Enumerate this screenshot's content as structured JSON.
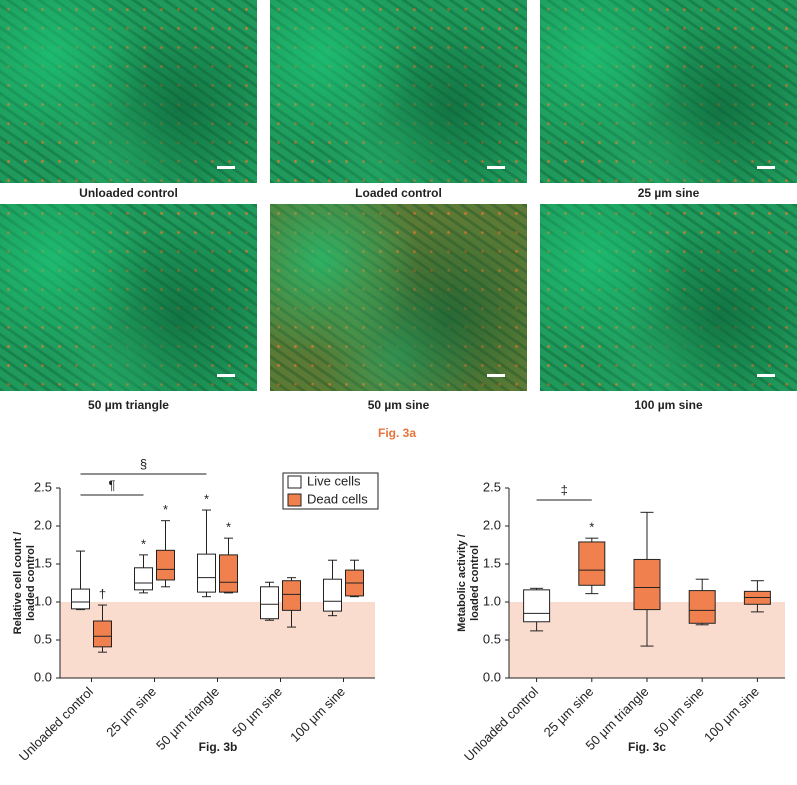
{
  "panel_a": {
    "label": "Fig. 3a",
    "images": [
      {
        "caption": "Unloaded control"
      },
      {
        "caption": "Loaded control"
      },
      {
        "caption": "25 µm sine"
      },
      {
        "caption": "50 µm triangle"
      },
      {
        "caption": "50 µm sine"
      },
      {
        "caption": "100 µm sine"
      }
    ]
  },
  "chart_data": [
    {
      "type": "box",
      "caption": "Fig. 3b",
      "y_label": [
        "Relative cell count /",
        "loaded control"
      ],
      "categories": [
        "Unloaded control",
        "25 µm sine",
        "50 µm triangle",
        "50 µm sine",
        "100 µm sine"
      ],
      "ylim": [
        0,
        2.5
      ],
      "yticks": [
        {
          "value": 0,
          "label": "0.0"
        },
        {
          "value": 0.5,
          "label": "0.5"
        },
        {
          "value": 1,
          "label": "1.0"
        },
        {
          "value": 1.5,
          "label": "1.5"
        },
        {
          "value": 2,
          "label": "2.0"
        },
        {
          "value": 2.5,
          "label": "2.5"
        }
      ],
      "shaded_range": [
        0,
        1
      ],
      "shade_color": "#fadcce",
      "legend": "top-right",
      "brackets": [
        "¶",
        "§"
      ],
      "series": [
        {
          "name": "Live cells",
          "color": "#ffffff",
          "marks": [
            null,
            "*",
            "*",
            null,
            null
          ],
          "values": [
            {
              "min": 0.9,
              "q1": 0.91,
              "median": 1.0,
              "q3": 1.17,
              "max": 1.67
            },
            {
              "min": 1.12,
              "q1": 1.16,
              "median": 1.25,
              "q3": 1.45,
              "max": 1.62
            },
            {
              "min": 1.07,
              "q1": 1.13,
              "median": 1.32,
              "q3": 1.63,
              "max": 2.21
            },
            {
              "min": 0.76,
              "q1": 0.78,
              "median": 0.97,
              "q3": 1.2,
              "max": 1.26
            },
            {
              "min": 0.82,
              "q1": 0.88,
              "median": 1.01,
              "q3": 1.3,
              "max": 1.55
            }
          ]
        },
        {
          "name": "Dead cells",
          "color": "#f0814f",
          "marks": [
            "†",
            "*",
            "*",
            null,
            null
          ],
          "values": [
            {
              "min": 0.34,
              "q1": 0.41,
              "median": 0.55,
              "q3": 0.75,
              "max": 0.96
            },
            {
              "min": 1.2,
              "q1": 1.29,
              "median": 1.43,
              "q3": 1.68,
              "max": 2.07
            },
            {
              "min": 1.12,
              "q1": 1.13,
              "median": 1.26,
              "q3": 1.62,
              "max": 1.84
            },
            {
              "min": 0.67,
              "q1": 0.89,
              "median": 1.1,
              "q3": 1.28,
              "max": 1.32
            },
            {
              "min": 1.07,
              "q1": 1.08,
              "median": 1.25,
              "q3": 1.42,
              "max": 1.55
            }
          ]
        }
      ]
    },
    {
      "type": "box",
      "caption": "Fig. 3c",
      "y_label": [
        "Metabolic activity /",
        "loaded control"
      ],
      "categories": [
        "Unloaded control",
        "25 µm sine",
        "50 µm triangle",
        "50 µm sine",
        "100 µm sine"
      ],
      "ylim": [
        0,
        2.5
      ],
      "yticks": [
        {
          "value": 0,
          "label": "0.0"
        },
        {
          "value": 0.5,
          "label": "0.5"
        },
        {
          "value": 1,
          "label": "1.0"
        },
        {
          "value": 1.5,
          "label": "1.5"
        },
        {
          "value": 2,
          "label": "2.0"
        },
        {
          "value": 2.5,
          "label": "2.5"
        }
      ],
      "shaded_range": [
        0,
        1
      ],
      "shade_color": "#fadcce",
      "brackets": [
        "‡"
      ],
      "series": [
        {
          "colors": [
            "#ffffff",
            "#f0814f",
            "#f0814f",
            "#f0814f",
            "#f0814f"
          ],
          "marks": [
            null,
            "*",
            null,
            null,
            null
          ],
          "values": [
            {
              "min": 0.62,
              "q1": 0.74,
              "median": 0.85,
              "q3": 1.16,
              "max": 1.18
            },
            {
              "min": 1.11,
              "q1": 1.22,
              "median": 1.42,
              "q3": 1.79,
              "max": 1.84
            },
            {
              "min": 0.42,
              "q1": 0.9,
              "median": 1.19,
              "q3": 1.56,
              "max": 2.18
            },
            {
              "min": 0.7,
              "q1": 0.72,
              "median": 0.89,
              "q3": 1.15,
              "max": 1.3
            },
            {
              "min": 0.87,
              "q1": 0.97,
              "median": 1.06,
              "q3": 1.14,
              "max": 1.28
            }
          ]
        }
      ]
    }
  ]
}
